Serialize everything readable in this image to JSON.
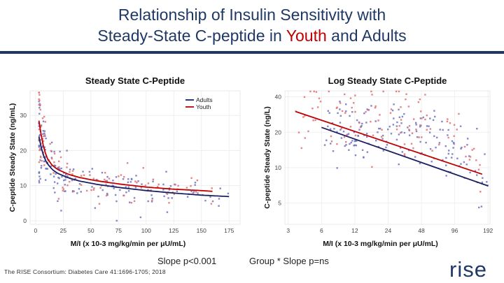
{
  "slide": {
    "title_line1": "Relationship of Insulin Sensitivity with",
    "title_line2_a": "Steady-State C-peptide in ",
    "title_line2_youth": "Youth",
    "title_line2_b": " and ",
    "title_line2_adults": "Adults",
    "caption_left": "Slope p<0.001",
    "caption_right": "Group * Slope p=ns",
    "citation": "The RISE Consortium: Diabetes Care 41:1696-1705; 2018",
    "logo_text": "rise",
    "colors": {
      "title": "#1f3864",
      "youth": "#c00000",
      "adults": "#1a2060",
      "youth_points": "#e07070",
      "adults_points": "#6f72c0"
    }
  },
  "chart_data": [
    {
      "type": "scatter",
      "title": "Steady State C-Peptide",
      "xlabel": "M/I (x 10-3 mg/kg/min per μU/mL)",
      "ylabel": "C-peptide Steady State (ng/mL)",
      "xlim": [
        -5,
        185
      ],
      "ylim": [
        -1,
        37
      ],
      "xticks": [
        "0",
        "25",
        "50",
        "75",
        "100",
        "125",
        "150",
        "175"
      ],
      "yticks": [
        "0",
        "10",
        "20",
        "30"
      ],
      "x_ticks_values": [
        0,
        25,
        50,
        75,
        100,
        125,
        150,
        175
      ],
      "y_ticks_values": [
        0,
        10,
        20,
        30
      ],
      "legend": "top-right",
      "series": [
        {
          "name": "Adults",
          "fit_x": [
            3,
            6,
            10,
            15,
            20,
            30,
            40,
            55,
            75,
            100,
            125,
            150,
            175
          ],
          "fit_y": [
            24,
            19.5,
            16.5,
            14.6,
            13.5,
            12.2,
            11.3,
            10.4,
            9.5,
            8.6,
            7.9,
            7.3,
            6.9
          ]
        },
        {
          "name": "Youth",
          "fit_x": [
            3,
            6,
            10,
            15,
            20,
            30,
            40,
            55,
            75,
            100,
            125,
            150,
            160
          ],
          "fit_y": [
            28.5,
            22.5,
            18,
            15.8,
            14.6,
            13.2,
            12.3,
            11.4,
            10.5,
            9.6,
            9.0,
            8.6,
            8.4
          ]
        }
      ]
    },
    {
      "type": "scatter",
      "title": "Log Steady State C-Peptide",
      "xlabel": "M/I (x 10-3 mg/kg/min per μU/mL)",
      "ylabel": "C-peptide Steady State (ng/L)",
      "xscale": "log",
      "yscale": "log",
      "xlim": [
        2.8,
        200
      ],
      "ylim": [
        3.3,
        45
      ],
      "xticks": [
        "3",
        "6",
        "12",
        "24",
        "48",
        "96",
        "192"
      ],
      "yticks": [
        "5",
        "10",
        "20",
        "40"
      ],
      "x_ticks_values": [
        3,
        6,
        12,
        24,
        48,
        96,
        192
      ],
      "y_ticks_values": [
        5,
        10,
        20,
        40
      ],
      "series": [
        {
          "name": "Adults",
          "fit_x": [
            6,
            192
          ],
          "fit_y": [
            22,
            7
          ]
        },
        {
          "name": "Youth",
          "fit_x": [
            3.5,
            170
          ],
          "fit_y": [
            30,
            8.8
          ]
        }
      ]
    }
  ]
}
